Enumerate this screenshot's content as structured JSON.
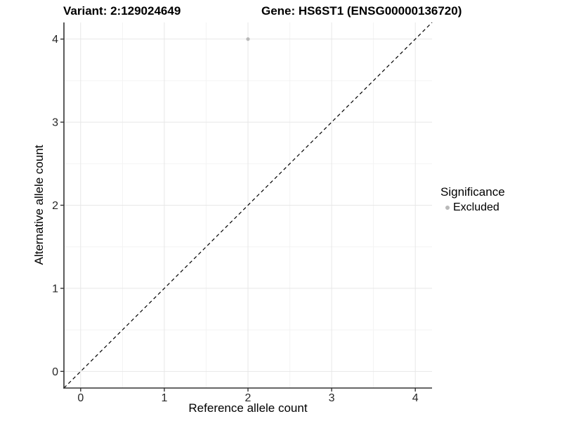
{
  "chart_data": {
    "type": "scatter",
    "title_left": "Variant: 2:129024649",
    "title_right": "Gene: HS6ST1 (ENSG00000136720)",
    "xlabel": "Reference allele count",
    "ylabel": "Alternative allele count",
    "xlim": [
      -0.2,
      4.2
    ],
    "ylim": [
      -0.2,
      4.2
    ],
    "xticks": [
      0,
      1,
      2,
      3,
      4
    ],
    "yticks": [
      0,
      1,
      2,
      3,
      4
    ],
    "xticks_minor": [
      0.5,
      1.5,
      2.5,
      3.5
    ],
    "yticks_minor": [
      0.5,
      1.5,
      2.5,
      3.5
    ],
    "grid": true,
    "points": [
      {
        "x": 2,
        "y": 4,
        "series": "Excluded"
      }
    ],
    "reference_line": {
      "type": "abline",
      "intercept": 0,
      "slope": 1,
      "style": "dashed"
    },
    "legend": {
      "title": "Significance",
      "position": "right",
      "entries": [
        {
          "label": "Excluded",
          "color": "#b9b9b9",
          "marker": "circle"
        }
      ]
    },
    "colors": {
      "background": "#ffffff",
      "point": "#b9b9b9",
      "grid_major": "#e7e7e7",
      "grid_minor": "#f3f3f3",
      "axis_line": "#333333",
      "tick_text": "#262626",
      "reference_line": "#000000"
    }
  }
}
